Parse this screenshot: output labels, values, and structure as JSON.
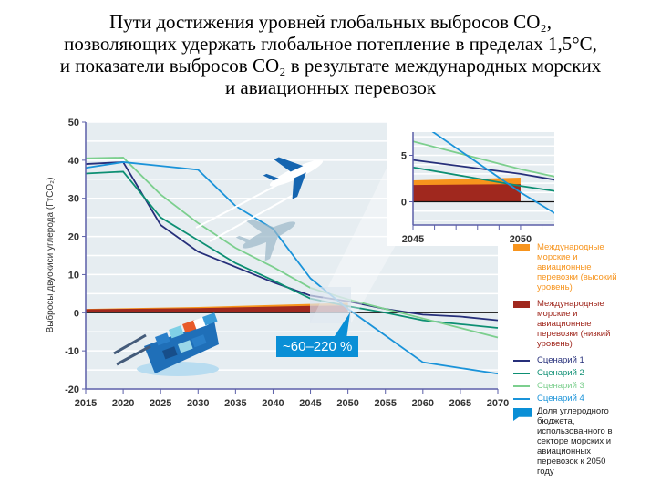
{
  "title_lines": [
    "Пути достижения уровней глобальных выбросов CO₂,",
    "позволяющих удержать глобальное потепление в пределах 1,5°C,",
    "и показатели выбросов CO₂ в результате международных морских",
    "и авиационных перевозок"
  ],
  "callout": "~60–220 %",
  "legend": [
    {
      "label": "Международные морские и авиационные перевозки (высокий уровень)",
      "color": "#f7941d",
      "kind": "box"
    },
    {
      "label": "Международные морские и авиационные перевозки (низкий уровень)",
      "color": "#a0281e",
      "kind": "box"
    },
    {
      "label": "Сценарий 1",
      "color": "#262f7a",
      "kind": "line"
    },
    {
      "label": "Сценарий 2",
      "color": "#0d8f73",
      "kind": "line"
    },
    {
      "label": "Сценарий 3",
      "color": "#7ccf8e",
      "kind": "line"
    },
    {
      "label": "Сценарий 4",
      "color": "#1a93d9",
      "kind": "line"
    },
    {
      "label": "Доля углеродного бюджета, использованного в секторе морских и авиационных перевозок к 2050 году",
      "color": "#0a8fd6",
      "kind": "callout"
    }
  ],
  "chart_data": {
    "type": "line",
    "title": "Пути достижения уровней глобальных выбросов CO₂",
    "ylabel": "Выбросы двуокиси углерода (ГтCO₂)",
    "xlabel": "",
    "xlim": [
      2015,
      2070
    ],
    "ylim": [
      -20,
      50
    ],
    "xticks": [
      2015,
      2020,
      2025,
      2030,
      2035,
      2040,
      2045,
      2050,
      2055,
      2060,
      2065,
      2070
    ],
    "yticks": [
      -20,
      -10,
      0,
      10,
      20,
      30,
      40,
      50
    ],
    "x": [
      2015,
      2020,
      2025,
      2030,
      2035,
      2040,
      2045,
      2050,
      2055,
      2060,
      2065,
      2070
    ],
    "series": [
      {
        "name": "Сценарий 1",
        "values": [
          39,
          39.5,
          23,
          16,
          12,
          8,
          4.5,
          3,
          1,
          -0.5,
          -1,
          -2
        ]
      },
      {
        "name": "Сценарий 2",
        "values": [
          36.5,
          37,
          25,
          19,
          13,
          8.5,
          3.7,
          1.7,
          0,
          -2,
          -3,
          -4
        ]
      },
      {
        "name": "Сценарий 3",
        "values": [
          40.5,
          40.7,
          31,
          23.5,
          17,
          12,
          6.5,
          3.5,
          1,
          -1.5,
          -4,
          -6.5
        ]
      },
      {
        "name": "Сценарий 4",
        "values": [
          38,
          39.5,
          38.5,
          37.5,
          28,
          22,
          9,
          1,
          -6,
          -13,
          -14.5,
          -16
        ]
      }
    ],
    "shipping_aviation": {
      "x": [
        2015,
        2030,
        2045,
        2050
      ],
      "low": [
        0.9,
        1.2,
        1.8,
        1.9
      ],
      "high": [
        1.0,
        1.5,
        2.3,
        2.6
      ]
    },
    "inset": {
      "xlim": [
        2045,
        2051
      ],
      "ylim": [
        -2.5,
        7.5
      ],
      "xticks": [
        2045,
        2050
      ],
      "yticks": [
        0,
        5
      ]
    }
  }
}
